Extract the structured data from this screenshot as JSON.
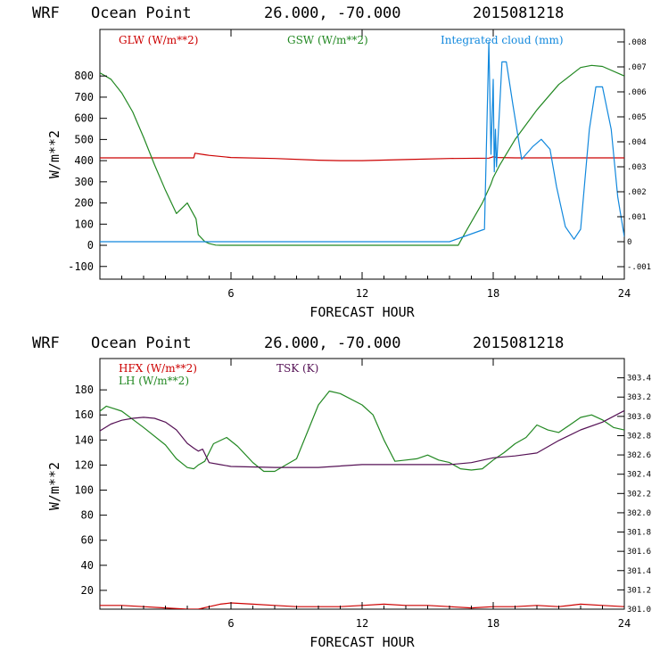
{
  "chart_data": [
    {
      "type": "line",
      "title_left": "WRF",
      "title_location": "Ocean Point",
      "title_coords": "26.000, -70.000",
      "title_time": "2015081218",
      "xlabel": "FORECAST HOUR",
      "ylabel": "W/m**2",
      "xlim": [
        0,
        24
      ],
      "ylim": [
        -160,
        1020
      ],
      "y2lim": [
        -0.0015,
        0.0085
      ],
      "x_ticks": [
        {
          "v": 6,
          "label": "6"
        },
        {
          "v": 12,
          "label": "12"
        },
        {
          "v": 18,
          "label": "18"
        },
        {
          "v": 24,
          "label": "24"
        }
      ],
      "y_ticks": [
        {
          "v": 800,
          "label": "800"
        },
        {
          "v": 700,
          "label": "700"
        },
        {
          "v": 600,
          "label": "600"
        },
        {
          "v": 500,
          "label": "500"
        },
        {
          "v": 400,
          "label": "400"
        },
        {
          "v": 300,
          "label": "300"
        },
        {
          "v": 200,
          "label": "200"
        },
        {
          "v": 100,
          "label": "100"
        },
        {
          "v": 0,
          "label": "0"
        },
        {
          "v": -100,
          "label": "-100"
        }
      ],
      "y2_ticks": [
        {
          "v": 0.008,
          "label": ".008"
        },
        {
          "v": 0.007,
          "label": ".007"
        },
        {
          "v": 0.006,
          "label": ".006"
        },
        {
          "v": 0.005,
          "label": ".005"
        },
        {
          "v": 0.004,
          "label": ".004"
        },
        {
          "v": 0.003,
          "label": ".003"
        },
        {
          "v": 0.002,
          "label": ".002"
        },
        {
          "v": 0.001,
          "label": ".001"
        },
        {
          "v": 0,
          "label": "0"
        },
        {
          "v": -0.001,
          "label": "-.001"
        }
      ],
      "series": [
        {
          "name": "GLW (W/m**2)",
          "color": "#cc0000",
          "axis": "left",
          "legend_pos": "left",
          "x": [
            0,
            4.3,
            4.35,
            4.8,
            5.0,
            6.0,
            8,
            10,
            11,
            12,
            14,
            16,
            17.8,
            18,
            18.2,
            19,
            22,
            24
          ],
          "y": [
            413,
            413,
            435,
            428,
            425,
            415,
            410,
            402,
            400,
            400,
            405,
            410,
            412,
            418,
            415,
            413,
            413,
            413
          ]
        },
        {
          "name": "GSW (W/m**2)",
          "color": "#228822",
          "axis": "left",
          "legend_pos": "center",
          "x": [
            0,
            0.5,
            1,
            1.5,
            2,
            2.5,
            3,
            3.5,
            4,
            4.4,
            4.5,
            4.8,
            5.0,
            5.3,
            5.5,
            6,
            10,
            16.4,
            16.5,
            17,
            17.5,
            17.9,
            18,
            18.3,
            19,
            20,
            21,
            22,
            22.5,
            23,
            24
          ],
          "y": [
            815,
            785,
            720,
            630,
            510,
            380,
            260,
            150,
            200,
            125,
            50,
            18,
            8,
            1,
            0,
            0,
            0,
            0,
            20,
            110,
            200,
            290,
            320,
            380,
            500,
            640,
            760,
            840,
            850,
            845,
            800
          ]
        },
        {
          "name": "Integrated cloud (mm)",
          "color": "#1188dd",
          "axis": "right",
          "legend_pos": "right",
          "x": [
            0,
            16,
            17.6,
            17.8,
            17.9,
            18.0,
            18.05,
            18.1,
            18.15,
            18.2,
            18.3,
            18.4,
            18.6,
            18.9,
            19.3,
            19.8,
            20.2,
            20.6,
            20.9,
            21.3,
            21.7,
            22.0,
            22.4,
            22.7,
            23.0,
            23.4,
            23.7,
            24
          ],
          "y": [
            0,
            0,
            0.0005,
            0.008,
            0.0035,
            0.0065,
            0.0028,
            0.0045,
            0.003,
            0.0038,
            0.0055,
            0.0072,
            0.0072,
            0.0055,
            0.0033,
            0.0038,
            0.0041,
            0.0037,
            0.0022,
            0.0006,
            0.0001,
            0.0005,
            0.0045,
            0.0062,
            0.0062,
            0.0045,
            0.0018,
            0.0002
          ]
        }
      ]
    },
    {
      "type": "line",
      "title_left": "WRF",
      "title_location": "Ocean Point",
      "title_coords": "26.000, -70.000",
      "title_time": "2015081218",
      "xlabel": "FORECAST HOUR",
      "ylabel": "W/m**2",
      "xlim": [
        0,
        24
      ],
      "ylim": [
        5,
        205
      ],
      "y2lim": [
        301.0,
        303.6
      ],
      "x_ticks": [
        {
          "v": 6,
          "label": "6"
        },
        {
          "v": 12,
          "label": "12"
        },
        {
          "v": 18,
          "label": "18"
        },
        {
          "v": 24,
          "label": "24"
        }
      ],
      "y_ticks": [
        {
          "v": 180,
          "label": "180"
        },
        {
          "v": 160,
          "label": "160"
        },
        {
          "v": 140,
          "label": "140"
        },
        {
          "v": 120,
          "label": "120"
        },
        {
          "v": 100,
          "label": "100"
        },
        {
          "v": 80,
          "label": "80"
        },
        {
          "v": 60,
          "label": "60"
        },
        {
          "v": 40,
          "label": "40"
        },
        {
          "v": 20,
          "label": "20"
        }
      ],
      "y2_ticks": [
        {
          "v": 303.4,
          "label": "303.4"
        },
        {
          "v": 303.2,
          "label": "303.2"
        },
        {
          "v": 303.0,
          "label": "303.0"
        },
        {
          "v": 302.8,
          "label": "302.8"
        },
        {
          "v": 302.6,
          "label": "302.6"
        },
        {
          "v": 302.4,
          "label": "302.4"
        },
        {
          "v": 302.2,
          "label": "302.2"
        },
        {
          "v": 302.0,
          "label": "302.0"
        },
        {
          "v": 301.8,
          "label": "301.8"
        },
        {
          "v": 301.6,
          "label": "301.6"
        },
        {
          "v": 301.4,
          "label": "301.4"
        },
        {
          "v": 301.2,
          "label": "301.2"
        },
        {
          "v": 301.0,
          "label": "301.0"
        }
      ],
      "series": [
        {
          "name": "HFX (W/m**2)",
          "color": "#cc0000",
          "axis": "left",
          "legend_pos": "left-1",
          "x": [
            0,
            1,
            2,
            3,
            4,
            4.5,
            5,
            5.5,
            6,
            7,
            8,
            9,
            10,
            11,
            12,
            13,
            14,
            15,
            16,
            17,
            18,
            19,
            20,
            21,
            22,
            23,
            24
          ],
          "y": [
            8,
            8,
            7,
            6,
            5,
            5,
            7,
            9,
            10,
            9,
            8,
            7,
            7,
            7,
            8,
            9,
            8,
            8,
            7,
            6,
            7,
            7,
            8,
            7,
            9,
            8,
            7
          ]
        },
        {
          "name": "LH (W/m**2)",
          "color": "#228822",
          "axis": "left",
          "legend_pos": "left-2",
          "x": [
            0,
            0.3,
            1,
            2,
            3,
            3.5,
            4,
            4.3,
            4.5,
            4.8,
            5.2,
            5.8,
            6.3,
            7,
            7.5,
            8,
            9,
            10,
            10.5,
            11,
            12,
            12.5,
            13,
            13.5,
            14,
            14.5,
            15,
            15.5,
            16,
            16.5,
            17,
            17.5,
            18,
            18.5,
            19,
            19.5,
            20,
            20.5,
            21,
            21.5,
            22,
            22.5,
            23,
            23.5,
            24
          ],
          "y": [
            163,
            167,
            163,
            150,
            136,
            125,
            118,
            117,
            120,
            123,
            137,
            142,
            135,
            122,
            115,
            115,
            125,
            168,
            179,
            177,
            168,
            160,
            140,
            123,
            124,
            125,
            128,
            124,
            122,
            117,
            116,
            117,
            124,
            130,
            137,
            142,
            152,
            148,
            146,
            152,
            158,
            160,
            156,
            150,
            148
          ]
        },
        {
          "name": "TSK (K)",
          "color": "#551155",
          "axis": "right",
          "legend_pos": "center",
          "x": [
            0,
            0.5,
            1,
            1.5,
            2,
            2.5,
            3,
            3.5,
            4,
            4.3,
            4.5,
            4.7,
            5,
            5.5,
            6,
            8,
            10,
            12,
            14,
            16,
            17,
            18,
            19,
            20,
            21,
            22,
            23,
            24
          ],
          "y": [
            302.85,
            302.92,
            302.96,
            302.98,
            302.99,
            302.98,
            302.94,
            302.86,
            302.72,
            302.67,
            302.64,
            302.66,
            302.52,
            302.5,
            302.48,
            302.47,
            302.47,
            302.5,
            302.5,
            302.5,
            302.52,
            302.57,
            302.59,
            302.62,
            302.75,
            302.86,
            302.94,
            303.06
          ]
        }
      ]
    }
  ]
}
